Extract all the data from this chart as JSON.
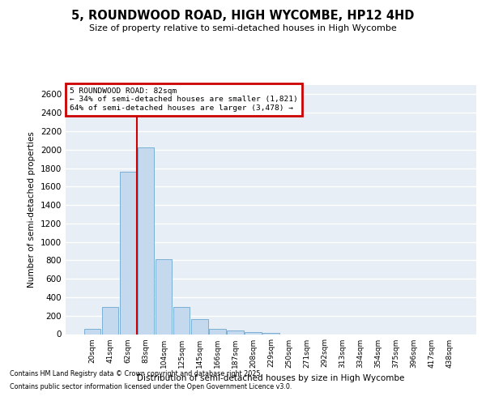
{
  "title": "5, ROUNDWOOD ROAD, HIGH WYCOMBE, HP12 4HD",
  "subtitle": "Size of property relative to semi-detached houses in High Wycombe",
  "xlabel": "Distribution of semi-detached houses by size in High Wycombe",
  "ylabel": "Number of semi-detached properties",
  "bar_color": "#c5d9ee",
  "bar_edge_color": "#7aafd4",
  "background_color": "#e8eef5",
  "grid_color": "#ffffff",
  "categories": [
    "20sqm",
    "41sqm",
    "62sqm",
    "83sqm",
    "104sqm",
    "125sqm",
    "145sqm",
    "166sqm",
    "187sqm",
    "208sqm",
    "229sqm",
    "250sqm",
    "271sqm",
    "292sqm",
    "313sqm",
    "334sqm",
    "354sqm",
    "375sqm",
    "396sqm",
    "417sqm",
    "438sqm"
  ],
  "values": [
    55,
    295,
    1760,
    2020,
    810,
    295,
    160,
    55,
    40,
    20,
    15,
    0,
    0,
    0,
    0,
    0,
    0,
    0,
    0,
    0,
    0
  ],
  "vline_position": 2.5,
  "vline_color": "#cc0000",
  "annotation_line1": "5 ROUNDWOOD ROAD: 82sqm",
  "annotation_line2": "← 34% of semi-detached houses are smaller (1,821)",
  "annotation_line3": "64% of semi-detached houses are larger (3,478) →",
  "annotation_box_color": "#cc0000",
  "ylim": [
    0,
    2700
  ],
  "yticks": [
    0,
    200,
    400,
    600,
    800,
    1000,
    1200,
    1400,
    1600,
    1800,
    2000,
    2200,
    2400,
    2600
  ],
  "footer_line1": "Contains HM Land Registry data © Crown copyright and database right 2025.",
  "footer_line2": "Contains public sector information licensed under the Open Government Licence v3.0."
}
